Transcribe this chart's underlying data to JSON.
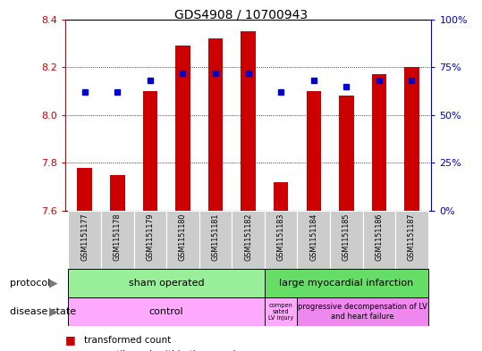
{
  "title": "GDS4908 / 10700943",
  "samples": [
    "GSM1151177",
    "GSM1151178",
    "GSM1151179",
    "GSM1151180",
    "GSM1151181",
    "GSM1151182",
    "GSM1151183",
    "GSM1151184",
    "GSM1151185",
    "GSM1151186",
    "GSM1151187"
  ],
  "transformed_count": [
    7.78,
    7.75,
    8.1,
    8.29,
    8.32,
    8.35,
    7.72,
    8.1,
    8.08,
    8.17,
    8.2
  ],
  "percentile_rank": [
    62,
    62,
    68,
    72,
    72,
    72,
    62,
    68,
    65,
    68,
    68
  ],
  "bar_bottom": 7.6,
  "ylim": [
    7.6,
    8.4
  ],
  "right_ylim": [
    0,
    100
  ],
  "right_yticks": [
    0,
    25,
    50,
    75,
    100
  ],
  "right_yticklabels": [
    "0%",
    "25%",
    "50%",
    "75%",
    "100%"
  ],
  "left_yticks": [
    7.6,
    7.8,
    8.0,
    8.2,
    8.4
  ],
  "bar_color": "#CC0000",
  "dot_color": "#0000CC",
  "sham_color": "#99EE99",
  "lmi_color": "#66DD66",
  "control_color": "#FFAAFF",
  "comp_color": "#FFAAFF",
  "prog_color": "#EE88EE",
  "xlabel_color": "#CC0000",
  "right_ylabel_color": "#0000CC",
  "tick_label_bg": "#CCCCCC"
}
